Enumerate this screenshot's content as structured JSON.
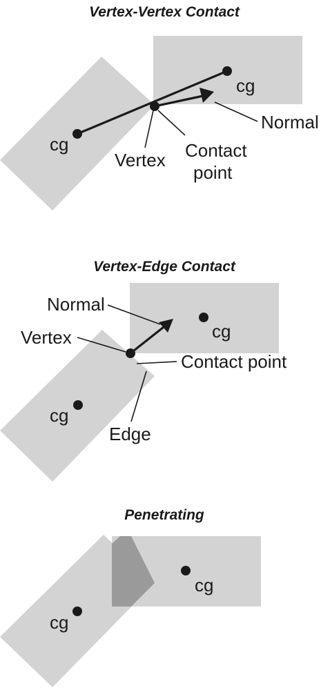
{
  "panels": [
    {
      "title": "Vertex-Vertex Contact",
      "labels": {
        "cg_left": "cg",
        "cg_right": "cg",
        "normal": "Normal",
        "vertex": "Vertex",
        "contact_line1": "Contact",
        "contact_line2": "point"
      }
    },
    {
      "title": "Vertex-Edge Contact",
      "labels": {
        "normal": "Normal",
        "vertex": "Vertex",
        "cg_right": "cg",
        "cg_left": "cg",
        "contact_point": "Contact point",
        "edge": "Edge"
      }
    },
    {
      "title": "Penetrating",
      "labels": {
        "cg_right": "cg",
        "cg_left": "cg"
      }
    }
  ],
  "colors": {
    "box": "#d3d3d3",
    "overlap": "#9a9a9a",
    "ink": "#1a1a1a"
  }
}
